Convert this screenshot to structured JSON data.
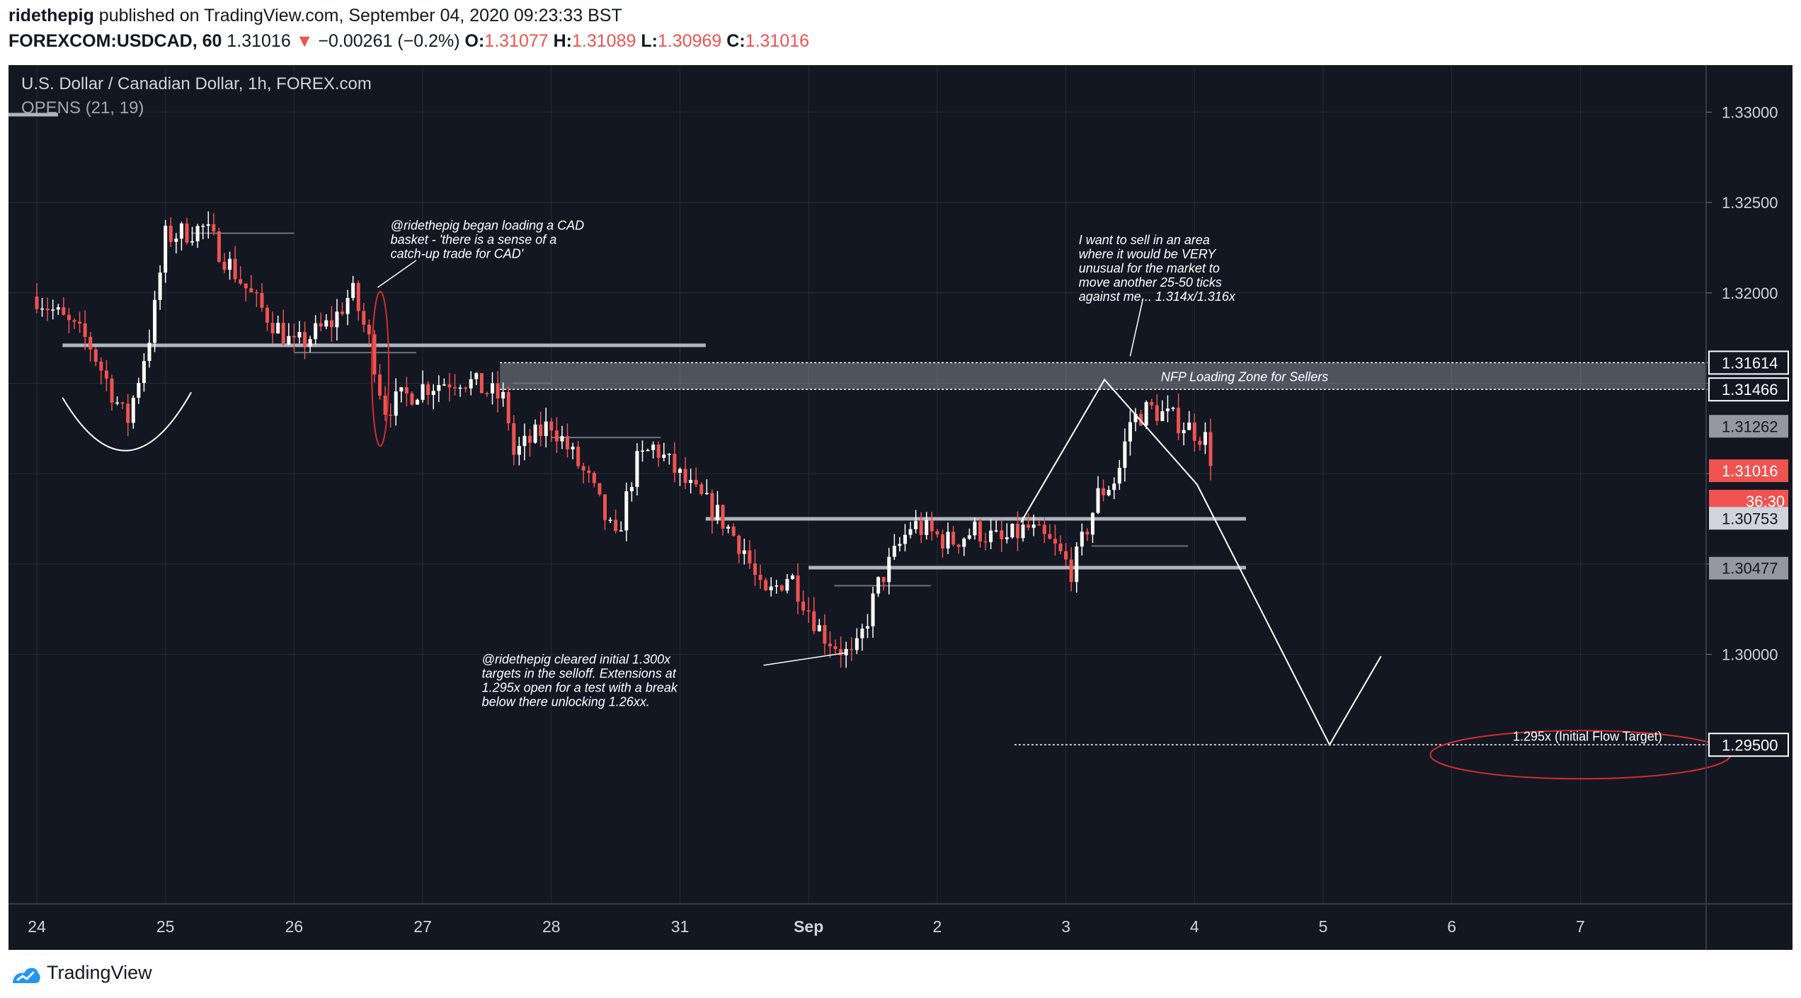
{
  "header": {
    "author": "ridethepig",
    "published_text": "published on TradingView.com, September 04, 2020 09:23:33 BST",
    "symbol": "FOREXCOM:USDCAD, 60",
    "last": "1.31016",
    "change_arrow": "▼",
    "change": "−0.00261 (−0.2%)",
    "o_label": "O:",
    "o_value": "1.31077",
    "h_label": "H:",
    "h_value": "1.31089",
    "l_label": "L:",
    "l_value": "1.30969",
    "c_label": "C:",
    "c_value": "1.31016"
  },
  "legend": {
    "title": "U.S. Dollar / Canadian Dollar, 1h, FOREX.com",
    "indicator": "OPENS (21, 19)"
  },
  "footer": {
    "brand": "TradingView"
  },
  "colors": {
    "background": "#131722",
    "up": "#ffffff",
    "down": "#ef5350",
    "grid": "#262a36",
    "level": "#b2b5be",
    "text": "#d1d4dc",
    "tag_current": "#ef5350"
  },
  "chart_data": {
    "type": "candlestick",
    "symbol": "USDCAD",
    "interval": "1h",
    "ylim": [
      1.2862,
      1.3326
    ],
    "x_ticks": [
      "24",
      "25",
      "26",
      "27",
      "28",
      "31",
      "Sep",
      "2",
      "3",
      "4",
      "5",
      "6",
      "7"
    ],
    "y_ticks": [
      "1.33000",
      "1.32500",
      "1.32000",
      "1.31500",
      "1.31000",
      "1.30500",
      "1.30000"
    ],
    "y_tick_values": [
      1.33,
      1.325,
      1.32,
      1.315,
      1.31,
      1.305,
      1.3
    ],
    "price_tags": [
      {
        "label": "1.31614",
        "value": 1.31614,
        "style": "outline"
      },
      {
        "label": "1.31466",
        "value": 1.31466,
        "style": "outline"
      },
      {
        "label": "1.31262",
        "value": 1.31262,
        "style": "gray"
      },
      {
        "label": "1.31016",
        "value": 1.31016,
        "style": "red"
      },
      {
        "label": "36:30",
        "value": 1.30848,
        "style": "red-timer"
      },
      {
        "label": "1.30753",
        "value": 1.30753,
        "style": "light"
      },
      {
        "label": "1.30477",
        "value": 1.30477,
        "style": "gray"
      },
      {
        "label": "1.29500",
        "value": 1.295,
        "style": "outline"
      }
    ],
    "candle_path": [
      {
        "x": 0.0,
        "price": 1.3198
      },
      {
        "x": 0.4,
        "price": 1.3173
      },
      {
        "x": 0.7,
        "price": 1.3128
      },
      {
        "x": 0.9,
        "price": 1.3183
      },
      {
        "x": 1.0,
        "price": 1.3231
      },
      {
        "x": 1.3,
        "price": 1.3236
      },
      {
        "x": 1.7,
        "price": 1.3195
      },
      {
        "x": 2.0,
        "price": 1.317
      },
      {
        "x": 2.3,
        "price": 1.3184
      },
      {
        "x": 2.45,
        "price": 1.3201
      },
      {
        "x": 2.6,
        "price": 1.317
      },
      {
        "x": 2.7,
        "price": 1.3136
      },
      {
        "x": 3.0,
        "price": 1.3148
      },
      {
        "x": 3.3,
        "price": 1.3153
      },
      {
        "x": 3.65,
        "price": 1.314
      },
      {
        "x": 3.7,
        "price": 1.311
      },
      {
        "x": 4.0,
        "price": 1.3128
      },
      {
        "x": 4.3,
        "price": 1.3095
      },
      {
        "x": 4.5,
        "price": 1.3062
      },
      {
        "x": 4.65,
        "price": 1.3105
      },
      {
        "x": 4.8,
        "price": 1.3115
      },
      {
        "x": 5.1,
        "price": 1.309
      },
      {
        "x": 5.3,
        "price": 1.3077
      },
      {
        "x": 5.5,
        "price": 1.3058
      },
      {
        "x": 5.65,
        "price": 1.303
      },
      {
        "x": 5.85,
        "price": 1.3045
      },
      {
        "x": 6.1,
        "price": 1.3012
      },
      {
        "x": 6.35,
        "price": 1.2997
      },
      {
        "x": 6.55,
        "price": 1.304
      },
      {
        "x": 6.8,
        "price": 1.3072
      },
      {
        "x": 7.1,
        "price": 1.3062
      },
      {
        "x": 7.3,
        "price": 1.3069
      },
      {
        "x": 7.5,
        "price": 1.3062
      },
      {
        "x": 7.7,
        "price": 1.307
      },
      {
        "x": 7.9,
        "price": 1.306
      },
      {
        "x": 8.05,
        "price": 1.3046
      },
      {
        "x": 8.25,
        "price": 1.3088
      },
      {
        "x": 8.4,
        "price": 1.3098
      },
      {
        "x": 8.5,
        "price": 1.3129
      },
      {
        "x": 8.65,
        "price": 1.3136
      },
      {
        "x": 8.9,
        "price": 1.3128
      },
      {
        "x": 9.08,
        "price": 1.312
      },
      {
        "x": 9.15,
        "price": 1.3103
      }
    ],
    "horizontal_levels": [
      {
        "price": 1.3171,
        "x_start": 0.2,
        "x_end": 5.2,
        "weight": "thick"
      },
      {
        "price": 1.3075,
        "x_start": 5.2,
        "x_end": 9.4,
        "weight": "thick"
      },
      {
        "price": 1.3048,
        "x_start": 6.0,
        "x_end": 9.4,
        "weight": "thick"
      },
      {
        "price": 1.3233,
        "x_start": 1.2,
        "x_end": 2.0,
        "weight": "thin"
      },
      {
        "price": 1.3167,
        "x_start": 2.0,
        "x_end": 2.95,
        "weight": "thin"
      },
      {
        "price": 1.312,
        "x_start": 4.0,
        "x_end": 4.85,
        "weight": "thin"
      },
      {
        "price": 1.306,
        "x_start": 8.2,
        "x_end": 8.95,
        "weight": "thin"
      },
      {
        "price": 1.3038,
        "x_start": 6.2,
        "x_end": 6.95,
        "weight": "thin"
      },
      {
        "price": 1.315,
        "x_start": 3.7,
        "x_end": 4.0,
        "weight": "thin"
      }
    ],
    "zone": {
      "label": "NFP Loading Zone for Sellers",
      "top": 1.31614,
      "bottom": 1.31466,
      "x_start": 3.6
    },
    "projection": [
      {
        "x": 7.65,
        "price": 1.3073
      },
      {
        "x": 8.3,
        "price": 1.3152
      },
      {
        "x": 9.02,
        "price": 1.3094
      },
      {
        "x": 10.05,
        "price": 1.295
      },
      {
        "x": 10.45,
        "price": 1.2999
      }
    ],
    "target": {
      "label": "1.295x (Initial Flow Target)",
      "price": 1.295,
      "x_start": 7.6
    },
    "annotations": [
      {
        "lines": [
          "@ridethepig began loading a CAD",
          "basket - 'there is a sense of a",
          "catch-up trade for CAD'"
        ],
        "x": 2.75,
        "price": 1.3235
      },
      {
        "lines": [
          "I want to sell in an area",
          "where it would be VERY",
          "unusual for the market to",
          "move another 25-50 ticks",
          "against me... 1.314x/1.316x"
        ],
        "x": 8.1,
        "price": 1.3227
      },
      {
        "lines": [
          "@ridethepig cleared initial 1.300x",
          "targets in the selloff. Extensions at",
          "1.295x open for a test with a break",
          "below there unlocking 1.26xx."
        ],
        "x": 3.46,
        "price": 1.2995
      }
    ],
    "grid": true
  }
}
